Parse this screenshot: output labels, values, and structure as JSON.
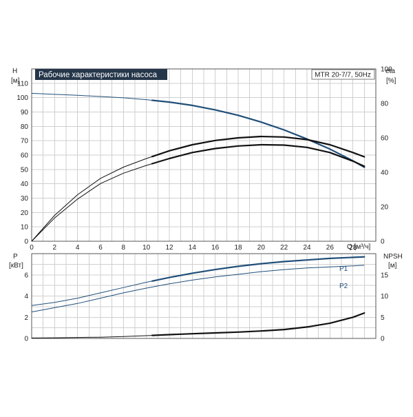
{
  "chart_data": [
    {
      "type": "line",
      "title": "Рабочие характеристики насоса",
      "model_label": "MTR 20-7/7, 50Hz",
      "xlabel": "Q [м³/ч]",
      "xlim": [
        0,
        30
      ],
      "x_ticks": [
        0,
        2,
        4,
        6,
        8,
        10,
        12,
        14,
        16,
        18,
        20,
        22,
        24,
        26,
        28
      ],
      "y_left": {
        "label_top": "H",
        "label_unit": "[м]",
        "lim": [
          0,
          120
        ],
        "ticks": [
          0,
          10,
          20,
          30,
          40,
          50,
          60,
          70,
          80,
          90,
          100,
          110
        ]
      },
      "y_right": {
        "label_top": "eta",
        "label_unit": "[%]",
        "lim": [
          0,
          100
        ],
        "ticks": [
          0,
          20,
          40,
          60,
          80,
          100
        ]
      },
      "grid": true,
      "series": [
        {
          "key": "head",
          "axis": "left",
          "color": "#1f4e79",
          "x": [
            0,
            2,
            4,
            6,
            8,
            10,
            12,
            14,
            16,
            18,
            20,
            22,
            24,
            26,
            28,
            29
          ],
          "y": [
            103,
            102.3,
            101.6,
            100.8,
            99.9,
            98.6,
            96.9,
            94.6,
            91.5,
            87.7,
            83,
            77.5,
            71.2,
            64.2,
            56,
            51.5
          ],
          "bold_from": 10.5
        },
        {
          "key": "eta_1",
          "axis": "right",
          "color": "#111111",
          "x": [
            0,
            2,
            4,
            6,
            8,
            10,
            12,
            14,
            16,
            18,
            20,
            22,
            24,
            26,
            28,
            29
          ],
          "y": [
            0,
            15,
            27,
            36.5,
            43,
            48,
            52.5,
            56,
            58.5,
            60,
            60.8,
            60.5,
            59,
            56,
            51.5,
            49
          ],
          "bold_from": 10.5
        },
        {
          "key": "eta_2",
          "axis": "right",
          "color": "#111111",
          "x": [
            0,
            2,
            4,
            6,
            8,
            10,
            12,
            14,
            16,
            18,
            20,
            22,
            24,
            26,
            28,
            29
          ],
          "y": [
            0,
            13.5,
            24.5,
            33.5,
            39.5,
            44,
            48,
            51.5,
            53.8,
            55.3,
            56,
            55.8,
            54.5,
            51.5,
            46.5,
            43.5
          ],
          "bold_from": 10.5
        }
      ]
    },
    {
      "type": "line",
      "xlim": [
        0,
        30
      ],
      "y_left": {
        "label_top": "P",
        "label_unit": "[кВт]",
        "lim": [
          0,
          8
        ],
        "ticks": [
          0,
          2,
          4,
          6
        ]
      },
      "y_right": {
        "label_top": "NPSH",
        "label_unit": "[м]",
        "lim": [
          0,
          20
        ],
        "ticks": [
          0,
          5,
          10,
          15
        ]
      },
      "grid": true,
      "series": [
        {
          "key": "p1",
          "name": "P1",
          "axis": "left",
          "color": "#1f4e79",
          "x": [
            0,
            2,
            4,
            6,
            8,
            10,
            12,
            14,
            16,
            18,
            20,
            22,
            24,
            26,
            28,
            29
          ],
          "y": [
            3.1,
            3.4,
            3.8,
            4.3,
            4.8,
            5.3,
            5.75,
            6.15,
            6.5,
            6.8,
            7.05,
            7.25,
            7.4,
            7.55,
            7.65,
            7.7
          ],
          "bold_from": 10.5
        },
        {
          "key": "p2",
          "name": "P2",
          "axis": "left",
          "color": "#1f4e79",
          "x": [
            0,
            2,
            4,
            6,
            8,
            10,
            12,
            14,
            16,
            18,
            20,
            22,
            24,
            26,
            28,
            29
          ],
          "y": [
            2.5,
            2.9,
            3.3,
            3.8,
            4.3,
            4.75,
            5.15,
            5.5,
            5.8,
            6.05,
            6.3,
            6.5,
            6.65,
            6.75,
            6.85,
            6.9
          ],
          "bold_from": 99
        },
        {
          "key": "npsh",
          "axis": "right",
          "color": "#111111",
          "x": [
            0,
            2,
            4,
            6,
            8,
            10,
            12,
            14,
            16,
            18,
            20,
            22,
            24,
            26,
            28,
            29
          ],
          "y": [
            0.1,
            0.15,
            0.22,
            0.3,
            0.45,
            0.65,
            0.9,
            1.1,
            1.3,
            1.5,
            1.75,
            2.1,
            2.7,
            3.6,
            5.0,
            6.0
          ],
          "bold_from": 10.5
        }
      ]
    }
  ]
}
